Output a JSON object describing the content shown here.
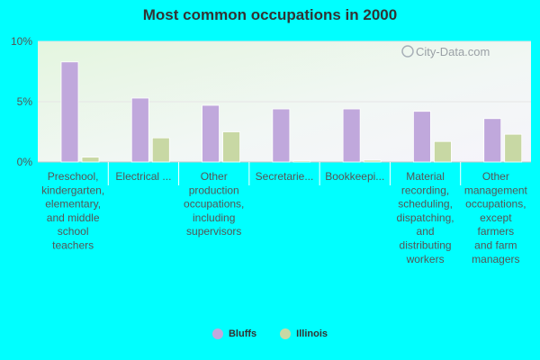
{
  "chart_data": {
    "type": "bar",
    "title": "Most common occupations in 2000",
    "xlabel": "",
    "ylabel": "",
    "ylim": [
      0,
      10
    ],
    "yticks": [
      "0%",
      "5%",
      "10%"
    ],
    "ytick_values": [
      0,
      5,
      10
    ],
    "grid": true,
    "legend_position": "bottom",
    "categories": [
      "Preschool, kindergarten, elementary, and middle school teachers",
      "Electrical ...",
      "Other production occupations, including supervisors",
      "Secretarie...",
      "Bookkeepi...",
      "Material recording, scheduling, dispatching, and distributing workers",
      "Other management occupations, except farmers and farm managers"
    ],
    "category_lines": [
      [
        "Preschool,",
        "kindergarten,",
        "elementary,",
        "and middle",
        "school",
        "teachers"
      ],
      [
        "Electrical ..."
      ],
      [
        "Other",
        "production",
        "occupations,",
        "including",
        "supervisors"
      ],
      [
        "Secretarie..."
      ],
      [
        "Bookkeepi..."
      ],
      [
        "Material",
        "recording,",
        "scheduling,",
        "dispatching,",
        "and",
        "distributing",
        "workers"
      ],
      [
        "Other",
        "management",
        "occupations,",
        "except",
        "farmers",
        "and farm",
        "managers"
      ]
    ],
    "series": [
      {
        "name": "Bluffs",
        "color": "#c0a8dc",
        "values": [
          8.3,
          5.3,
          4.7,
          4.4,
          4.4,
          4.2,
          3.6
        ]
      },
      {
        "name": "Illinois",
        "color": "#c8d8a4",
        "values": [
          0.4,
          2.0,
          2.5,
          0.1,
          0.15,
          1.7,
          2.3
        ]
      }
    ]
  },
  "watermark": "City-Data.com"
}
